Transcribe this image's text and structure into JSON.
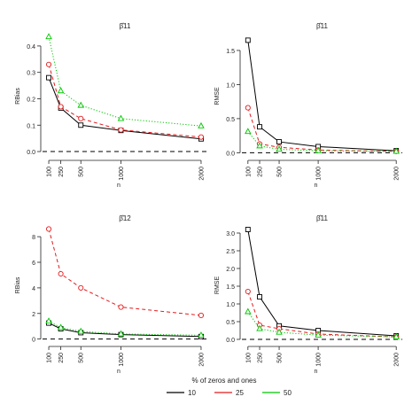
{
  "chart_data": [
    {
      "type": "line",
      "title": "β̂11",
      "xlabel": "n",
      "ylabel": "RBias",
      "x": [
        100,
        250,
        500,
        1000,
        2000
      ],
      "xticks": [
        "100",
        "250",
        "500",
        "1000",
        "2000"
      ],
      "xlim": [
        0,
        2100
      ],
      "ylim": [
        -0.02,
        0.44
      ],
      "yticks": [
        0.0,
        0.1,
        0.2,
        0.3,
        0.4
      ],
      "ytick_labels": [
        "0.0",
        "0.1",
        "0.2",
        "0.3",
        "0.4"
      ],
      "reference_line": 0,
      "series": [
        {
          "name": "10",
          "values": [
            0.28,
            0.165,
            0.1,
            0.08,
            0.048
          ]
        },
        {
          "name": "25",
          "values": [
            0.33,
            0.17,
            0.125,
            0.082,
            0.055
          ]
        },
        {
          "name": "50",
          "values": [
            0.435,
            0.23,
            0.175,
            0.125,
            0.097
          ]
        }
      ]
    },
    {
      "type": "line",
      "title": "β̂11",
      "xlabel": "n",
      "ylabel": "RMSE",
      "x": [
        100,
        250,
        500,
        1000,
        2000
      ],
      "xticks": [
        "100",
        "250",
        "500",
        "1000",
        "2000"
      ],
      "xlim": [
        0,
        2100
      ],
      "ylim": [
        -0.06,
        1.72
      ],
      "yticks": [
        0.0,
        0.5,
        1.0,
        1.5
      ],
      "ytick_labels": [
        "0.0",
        "0.5",
        "1.0",
        "1.5"
      ],
      "reference_line": 0,
      "series": [
        {
          "name": "10",
          "values": [
            1.65,
            0.38,
            0.16,
            0.09,
            0.03
          ]
        },
        {
          "name": "25",
          "values": [
            0.66,
            0.13,
            0.08,
            0.04,
            0.02
          ]
        },
        {
          "name": "50",
          "values": [
            0.31,
            0.1,
            0.05,
            0.03,
            0.02
          ]
        }
      ]
    },
    {
      "type": "line",
      "title": "β̂12",
      "xlabel": "n",
      "ylabel": "RBias",
      "x": [
        100,
        250,
        500,
        1000,
        2000
      ],
      "xticks": [
        "100",
        "250",
        "500",
        "1000",
        "2000"
      ],
      "xlim": [
        0,
        2100
      ],
      "ylim": [
        -0.3,
        8.7
      ],
      "yticks": [
        0,
        2,
        4,
        6,
        8
      ],
      "ytick_labels": [
        "0",
        "2",
        "4",
        "6",
        "8"
      ],
      "reference_line": 0,
      "series": [
        {
          "name": "10",
          "values": [
            1.25,
            0.8,
            0.5,
            0.35,
            0.2
          ]
        },
        {
          "name": "25",
          "values": [
            8.6,
            5.1,
            4.0,
            2.5,
            1.85
          ]
        },
        {
          "name": "50",
          "values": [
            1.4,
            0.9,
            0.6,
            0.4,
            0.3
          ]
        }
      ]
    },
    {
      "type": "line",
      "title": "β̂11",
      "xlabel": "n",
      "ylabel": "RMSE",
      "x": [
        100,
        250,
        500,
        1000,
        2000
      ],
      "xticks": [
        "100",
        "250",
        "500",
        "1000",
        "2000"
      ],
      "xlim": [
        0,
        2100
      ],
      "ylim": [
        -0.1,
        3.15
      ],
      "yticks": [
        0.0,
        0.5,
        1.0,
        1.5,
        2.0,
        2.5,
        3.0
      ],
      "ytick_labels": [
        "0.0",
        "0.5",
        "1.0",
        "1.5",
        "2.0",
        "2.5",
        "3.0"
      ],
      "reference_line": 0,
      "series": [
        {
          "name": "10",
          "values": [
            3.1,
            1.2,
            0.38,
            0.25,
            0.1
          ]
        },
        {
          "name": "25",
          "values": [
            1.35,
            0.4,
            0.3,
            0.15,
            0.07
          ]
        },
        {
          "name": "50",
          "values": [
            0.78,
            0.3,
            0.2,
            0.12,
            0.07
          ]
        }
      ]
    }
  ],
  "legend": {
    "title": "% of zeros and ones",
    "items": [
      {
        "label": "10",
        "color": "#000000"
      },
      {
        "label": "25",
        "color": "#e41a1c"
      },
      {
        "label": "50",
        "color": "#00c800"
      }
    ]
  },
  "colors": {
    "10": "#000000",
    "25": "#e41a1c",
    "50": "#00c800",
    "reference": "#000000"
  },
  "markers": {
    "10": "square",
    "25": "circle",
    "50": "triangle"
  },
  "line_styles": {
    "10": "solid",
    "25": "dashed",
    "50": "dotted",
    "reference": "dashed"
  }
}
